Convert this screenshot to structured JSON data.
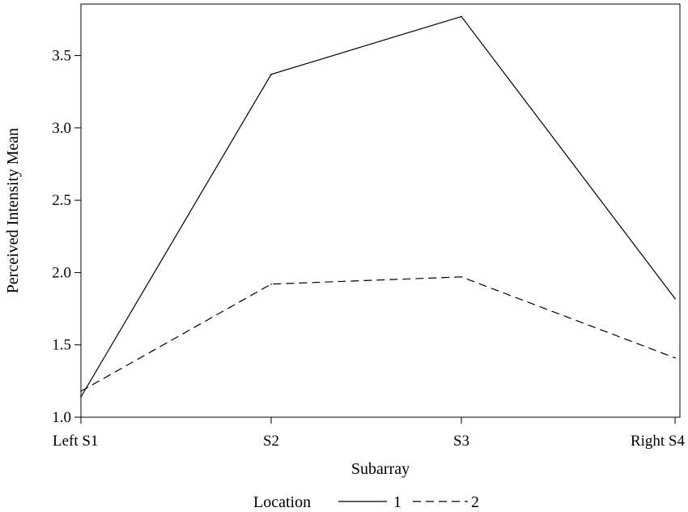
{
  "chart_data": {
    "type": "line",
    "title": "",
    "xlabel": "Subarray",
    "ylabel": "Perceived Intensity Mean",
    "categories": [
      "Left S1",
      "S2",
      "S3",
      "Right S4"
    ],
    "yticks": [
      "1.0",
      "1.5",
      "2.0",
      "2.5",
      "3.0",
      "3.5"
    ],
    "ylim": [
      1.0,
      3.8
    ],
    "grid": false,
    "legend": {
      "position": "bottom",
      "title": "Location"
    },
    "series": [
      {
        "name": "1",
        "line_style": "solid",
        "values": [
          1.14,
          3.37,
          3.77,
          1.82
        ]
      },
      {
        "name": "2",
        "line_style": "dashed",
        "values": [
          1.18,
          1.92,
          1.97,
          1.41
        ]
      }
    ]
  }
}
